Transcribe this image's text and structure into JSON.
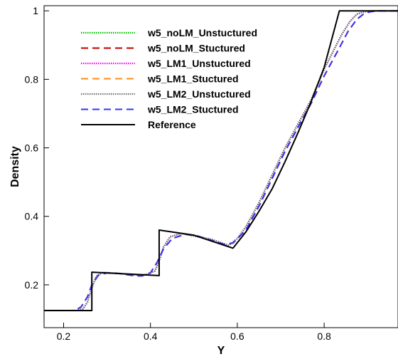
{
  "chart_data": {
    "type": "line",
    "title": "",
    "xlabel": "Y",
    "ylabel": "Density",
    "xlim": [
      0.155,
      0.97
    ],
    "ylim": [
      0.075,
      1.015
    ],
    "xticks": [
      0.2,
      0.4,
      0.6,
      0.8
    ],
    "yticks": [
      0.2,
      0.4,
      0.6,
      0.8,
      1
    ],
    "xtick_labels": [
      "0.2",
      "0.4",
      "0.6",
      "0.8"
    ],
    "ytick_labels": [
      "0.2",
      "0.4",
      "0.6",
      "0.8",
      "1"
    ],
    "grid": false,
    "legend_position": "top-left",
    "series": [
      {
        "name": "w5_noLM_Unstuctured",
        "color": "#00c000",
        "style": "dotted",
        "x": [
          0.155,
          0.23,
          0.245,
          0.255,
          0.265,
          0.275,
          0.29,
          0.32,
          0.36,
          0.39,
          0.41,
          0.42,
          0.43,
          0.445,
          0.47,
          0.5,
          0.54,
          0.58,
          0.6,
          0.62,
          0.65,
          0.68,
          0.71,
          0.74,
          0.77,
          0.8,
          0.82,
          0.84,
          0.86,
          0.875,
          0.89,
          0.91,
          0.94,
          0.97
        ],
        "y": [
          0.125,
          0.125,
          0.13,
          0.15,
          0.19,
          0.225,
          0.236,
          0.234,
          0.229,
          0.23,
          0.24,
          0.27,
          0.31,
          0.34,
          0.35,
          0.343,
          0.333,
          0.315,
          0.335,
          0.37,
          0.44,
          0.52,
          0.6,
          0.67,
          0.74,
          0.83,
          0.88,
          0.93,
          0.97,
          0.99,
          0.997,
          1.0,
          1.0,
          1.0
        ]
      },
      {
        "name": "w5_noLM_Stuctured",
        "color": "#c00000",
        "style": "dashed",
        "x": [
          0.155,
          0.225,
          0.24,
          0.255,
          0.265,
          0.28,
          0.3,
          0.33,
          0.36,
          0.38,
          0.4,
          0.415,
          0.43,
          0.45,
          0.48,
          0.51,
          0.54,
          0.57,
          0.59,
          0.62,
          0.65,
          0.68,
          0.71,
          0.74,
          0.77,
          0.8,
          0.83,
          0.855,
          0.875,
          0.89,
          0.905,
          0.92,
          0.97
        ],
        "y": [
          0.125,
          0.125,
          0.135,
          0.165,
          0.2,
          0.228,
          0.235,
          0.233,
          0.227,
          0.226,
          0.235,
          0.265,
          0.305,
          0.335,
          0.348,
          0.342,
          0.33,
          0.318,
          0.322,
          0.36,
          0.43,
          0.51,
          0.59,
          0.66,
          0.73,
          0.81,
          0.88,
          0.94,
          0.975,
          0.99,
          0.997,
          1.0,
          1.0
        ]
      },
      {
        "name": "w5_LM1_Unstuctured",
        "color": "#ff00ff",
        "style": "dotted",
        "x": [
          0.155,
          0.23,
          0.245,
          0.255,
          0.265,
          0.275,
          0.29,
          0.32,
          0.36,
          0.39,
          0.41,
          0.42,
          0.43,
          0.445,
          0.47,
          0.5,
          0.54,
          0.58,
          0.6,
          0.62,
          0.65,
          0.68,
          0.71,
          0.74,
          0.77,
          0.8,
          0.82,
          0.84,
          0.86,
          0.875,
          0.89,
          0.91,
          0.94,
          0.97
        ],
        "y": [
          0.125,
          0.125,
          0.13,
          0.15,
          0.19,
          0.225,
          0.236,
          0.234,
          0.229,
          0.23,
          0.24,
          0.27,
          0.31,
          0.34,
          0.35,
          0.343,
          0.333,
          0.315,
          0.335,
          0.37,
          0.44,
          0.52,
          0.6,
          0.67,
          0.74,
          0.83,
          0.88,
          0.93,
          0.97,
          0.99,
          0.997,
          1.0,
          1.0,
          1.0
        ]
      },
      {
        "name": "w5_LM1_Stuctured",
        "color": "#ff8c1a",
        "style": "dashed",
        "x": [
          0.155,
          0.225,
          0.24,
          0.255,
          0.265,
          0.28,
          0.3,
          0.33,
          0.36,
          0.38,
          0.4,
          0.415,
          0.43,
          0.45,
          0.48,
          0.51,
          0.54,
          0.57,
          0.59,
          0.62,
          0.65,
          0.68,
          0.71,
          0.74,
          0.77,
          0.8,
          0.83,
          0.855,
          0.875,
          0.89,
          0.905,
          0.92,
          0.97
        ],
        "y": [
          0.125,
          0.125,
          0.135,
          0.165,
          0.2,
          0.228,
          0.235,
          0.233,
          0.227,
          0.226,
          0.235,
          0.265,
          0.305,
          0.335,
          0.348,
          0.342,
          0.33,
          0.318,
          0.322,
          0.36,
          0.43,
          0.51,
          0.59,
          0.66,
          0.73,
          0.81,
          0.88,
          0.94,
          0.975,
          0.99,
          0.997,
          1.0,
          1.0
        ]
      },
      {
        "name": "w5_LM2_Unstuctured",
        "color": "#707070",
        "style": "dotted",
        "x": [
          0.155,
          0.23,
          0.245,
          0.255,
          0.265,
          0.275,
          0.29,
          0.32,
          0.36,
          0.39,
          0.41,
          0.42,
          0.43,
          0.445,
          0.47,
          0.5,
          0.54,
          0.58,
          0.6,
          0.62,
          0.65,
          0.68,
          0.71,
          0.74,
          0.77,
          0.8,
          0.82,
          0.84,
          0.86,
          0.875,
          0.89,
          0.91,
          0.94,
          0.97
        ],
        "y": [
          0.125,
          0.125,
          0.13,
          0.15,
          0.19,
          0.225,
          0.236,
          0.234,
          0.229,
          0.23,
          0.24,
          0.27,
          0.31,
          0.34,
          0.35,
          0.343,
          0.333,
          0.315,
          0.335,
          0.37,
          0.44,
          0.52,
          0.6,
          0.67,
          0.74,
          0.83,
          0.88,
          0.93,
          0.97,
          0.99,
          0.997,
          1.0,
          1.0,
          1.0
        ]
      },
      {
        "name": "w5_LM2_Stuctured",
        "color": "#3333ff",
        "style": "dashed",
        "x": [
          0.155,
          0.225,
          0.24,
          0.255,
          0.265,
          0.28,
          0.3,
          0.33,
          0.36,
          0.38,
          0.4,
          0.415,
          0.43,
          0.45,
          0.48,
          0.51,
          0.54,
          0.57,
          0.59,
          0.62,
          0.65,
          0.68,
          0.71,
          0.74,
          0.77,
          0.8,
          0.83,
          0.855,
          0.875,
          0.89,
          0.905,
          0.92,
          0.97
        ],
        "y": [
          0.125,
          0.125,
          0.135,
          0.165,
          0.2,
          0.228,
          0.235,
          0.233,
          0.227,
          0.226,
          0.235,
          0.265,
          0.305,
          0.335,
          0.348,
          0.342,
          0.33,
          0.318,
          0.322,
          0.36,
          0.43,
          0.51,
          0.59,
          0.66,
          0.73,
          0.81,
          0.88,
          0.94,
          0.975,
          0.99,
          0.997,
          1.0,
          1.0
        ]
      },
      {
        "name": "Reference",
        "color": "#000000",
        "style": "solid",
        "x": [
          0.155,
          0.265,
          0.265,
          0.42,
          0.42,
          0.5,
          0.59,
          0.62,
          0.65,
          0.68,
          0.71,
          0.74,
          0.77,
          0.8,
          0.835,
          0.835,
          0.97
        ],
        "y": [
          0.125,
          0.125,
          0.237,
          0.227,
          0.36,
          0.345,
          0.307,
          0.355,
          0.415,
          0.48,
          0.56,
          0.645,
          0.735,
          0.835,
          1.0,
          1.0,
          1.0
        ]
      }
    ]
  }
}
